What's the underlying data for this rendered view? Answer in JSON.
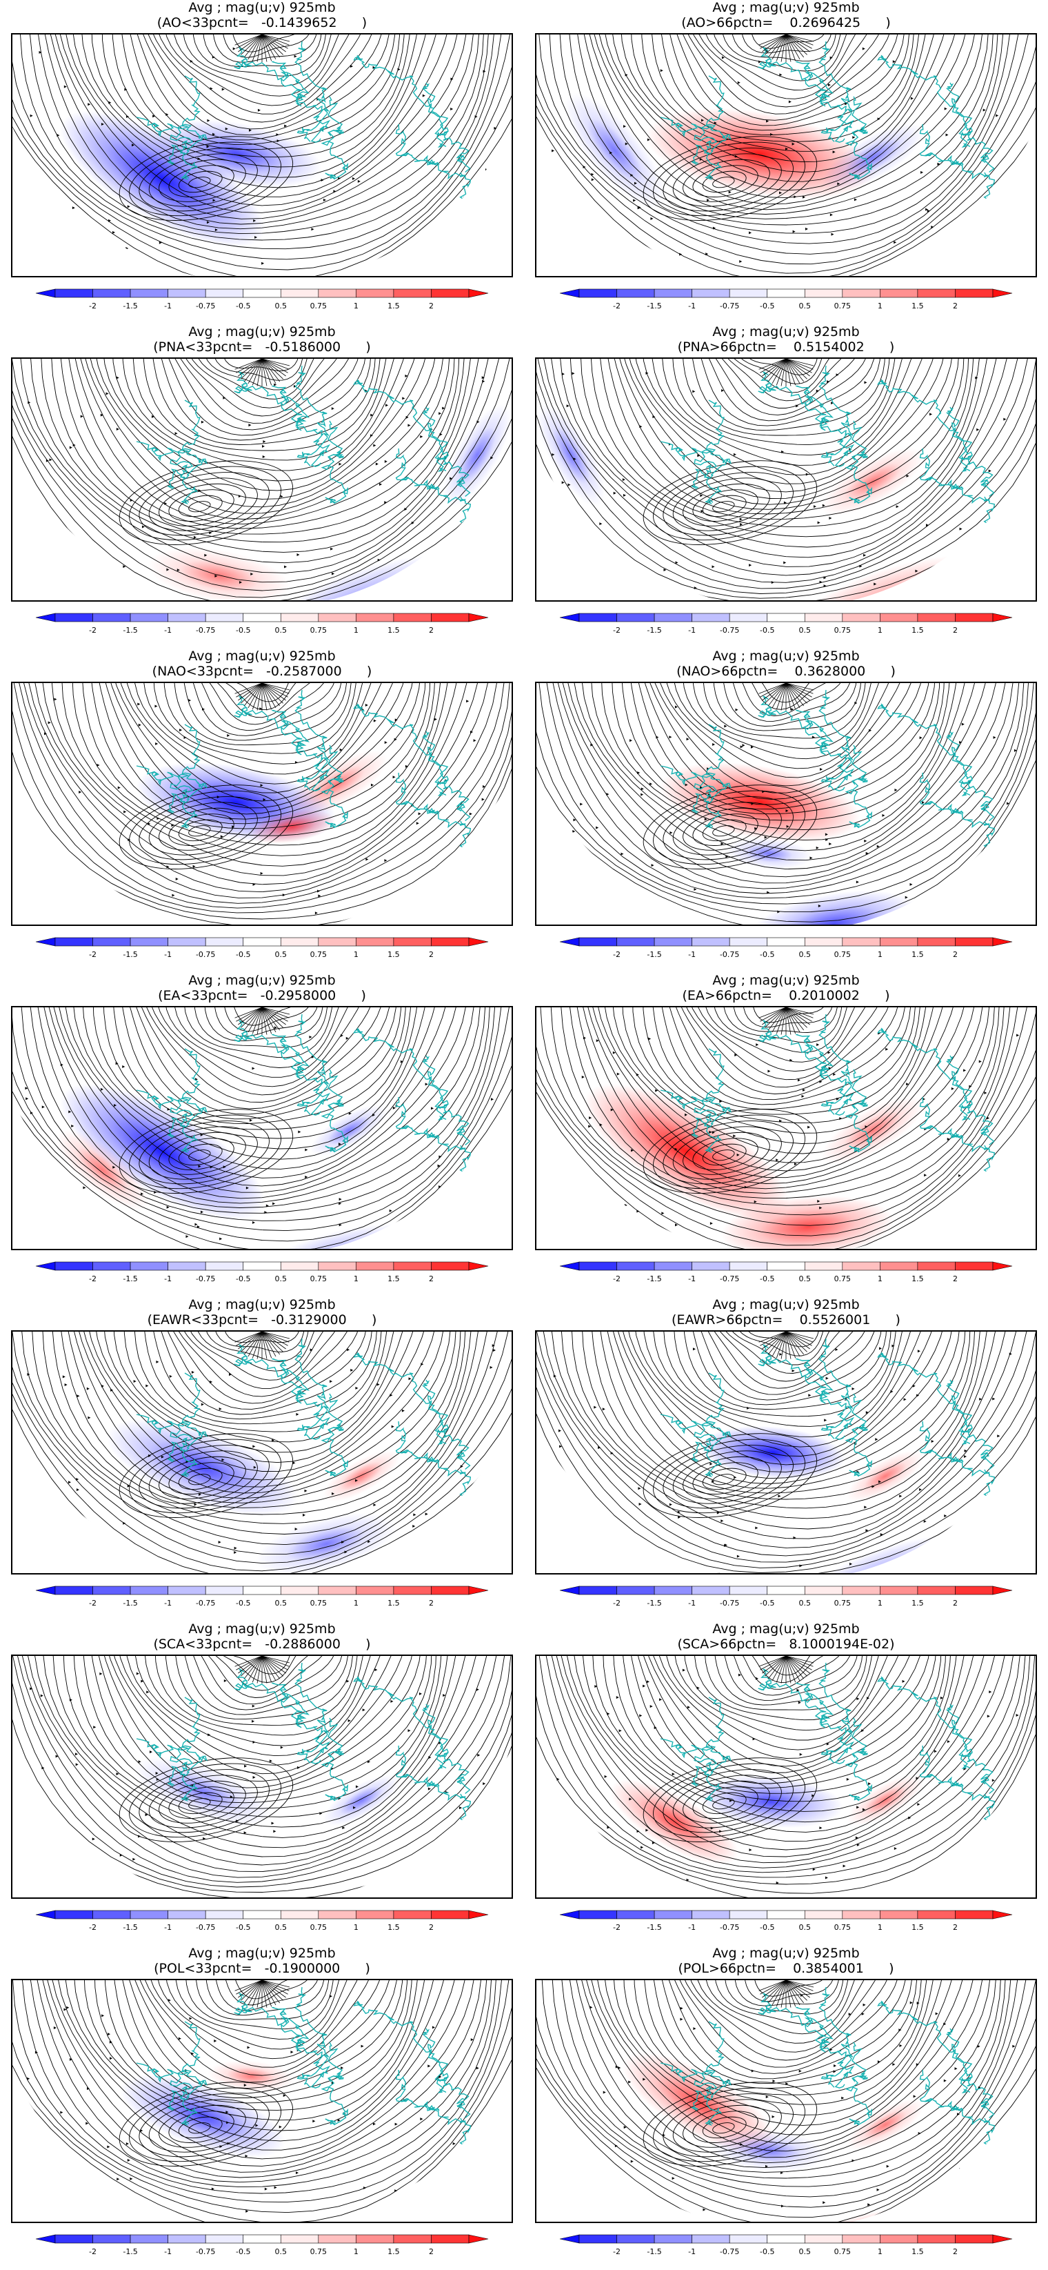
{
  "figure": {
    "colors": {
      "stream": "#000000",
      "coast": "#19b2b2",
      "neg_strong": "#1010ff",
      "neg_mid": "#6a6aff",
      "neg_light": "#c8c8ff",
      "pos_light": "#ffc8c8",
      "pos_mid": "#ff6a6a",
      "pos_strong": "#ff1010"
    },
    "colorbar": {
      "ticks": [
        "-2",
        "-1.5",
        "-1",
        "-0.75",
        "-0.5",
        "0.5",
        "0.75",
        "1",
        "1.5",
        "2"
      ],
      "colors": [
        "#1010ff",
        "#3535ff",
        "#6060ff",
        "#9090ff",
        "#c0c0ff",
        "#ececff",
        "#ffffff",
        "#ffecec",
        "#ffc0c0",
        "#ff9090",
        "#ff6060",
        "#ff3535",
        "#ff1010"
      ]
    },
    "panels": [
      {
        "line1": "Avg ; mag(u;v) 925mb",
        "line2": "(AO<33pcnt=   -0.1439652      )",
        "anomalies": [
          {
            "lon": 150,
            "lat": 50,
            "sign": -1,
            "level": 3,
            "spread": 40
          },
          {
            "lon": 170,
            "lat": 60,
            "sign": -1,
            "level": 2,
            "spread": 30
          },
          {
            "lon": 20,
            "lat": 40,
            "sign": 1,
            "level": 2,
            "spread": 20
          },
          {
            "lon": -30,
            "lat": 30,
            "sign": -1,
            "level": 1,
            "spread": 20
          }
        ]
      },
      {
        "line1": "Avg ; mag(u;v) 925mb",
        "line2": "(AO>66pctn=    0.2696425      )",
        "anomalies": [
          {
            "lon": 170,
            "lat": 60,
            "sign": 1,
            "level": 3,
            "spread": 40
          },
          {
            "lon": 20,
            "lat": 40,
            "sign": 1,
            "level": 2,
            "spread": 20
          },
          {
            "lon": 130,
            "lat": 45,
            "sign": -1,
            "level": 1,
            "spread": 25
          },
          {
            "lon": -150,
            "lat": 55,
            "sign": -1,
            "level": 1,
            "spread": 20
          }
        ]
      },
      {
        "line1": "Avg ; mag(u;v) 925mb",
        "line2": "(PNA<33pcnt=   -0.5186000      )",
        "anomalies": [
          {
            "lon": 200,
            "lat": 30,
            "sign": -1,
            "level": 2,
            "spread": 40
          },
          {
            "lon": 170,
            "lat": 40,
            "sign": 1,
            "level": 1,
            "spread": 25
          },
          {
            "lon": -120,
            "lat": 40,
            "sign": -1,
            "level": 1,
            "spread": 20
          }
        ]
      },
      {
        "line1": "Avg ; mag(u;v) 925mb",
        "line2": "(PNA>66pctn=    0.5154002      )",
        "anomalies": [
          {
            "lon": 200,
            "lat": 30,
            "sign": 1,
            "level": 2,
            "spread": 40
          },
          {
            "lon": 20,
            "lat": 45,
            "sign": -1,
            "level": 2,
            "spread": 20
          },
          {
            "lon": -150,
            "lat": 55,
            "sign": 1,
            "level": 1,
            "spread": 20
          },
          {
            "lon": 120,
            "lat": 40,
            "sign": -1,
            "level": 1,
            "spread": 20
          }
        ]
      },
      {
        "line1": "Avg ; mag(u;v) 925mb",
        "line2": "(NAO<33pcnt=   -0.2587000      )",
        "anomalies": [
          {
            "lon": 170,
            "lat": 60,
            "sign": -1,
            "level": 3,
            "spread": 35
          },
          {
            "lon": 20,
            "lat": 40,
            "sign": -1,
            "level": 2,
            "spread": 20
          },
          {
            "lon": 190,
            "lat": 55,
            "sign": 1,
            "level": 2,
            "spread": 15
          },
          {
            "lon": -150,
            "lat": 60,
            "sign": 1,
            "level": 1,
            "spread": 20
          }
        ]
      },
      {
        "line1": "Avg ; mag(u;v) 925mb",
        "line2": "(NAO>66pctn=    0.3628000      )",
        "anomalies": [
          {
            "lon": 170,
            "lat": 60,
            "sign": 1,
            "level": 3,
            "spread": 35
          },
          {
            "lon": 20,
            "lat": 40,
            "sign": 1,
            "level": 2,
            "spread": 20
          },
          {
            "lon": 190,
            "lat": 35,
            "sign": -1,
            "level": 2,
            "spread": 30
          },
          {
            "lon": 175,
            "lat": 50,
            "sign": -1,
            "level": 1,
            "spread": 15
          }
        ]
      },
      {
        "line1": "Avg ; mag(u;v) 925mb",
        "line2": "(EA<33pcnt=   -0.2958000      )",
        "anomalies": [
          {
            "lon": 150,
            "lat": 50,
            "sign": -1,
            "level": 3,
            "spread": 40
          },
          {
            "lon": 195,
            "lat": 30,
            "sign": -1,
            "level": 2,
            "spread": 35
          },
          {
            "lon": 140,
            "lat": 40,
            "sign": 1,
            "level": 1,
            "spread": 20
          },
          {
            "lon": -150,
            "lat": 55,
            "sign": -1,
            "level": 1,
            "spread": 15
          }
        ]
      },
      {
        "line1": "Avg ; mag(u;v) 925mb",
        "line2": "(EA>66pctn=    0.2010002      )",
        "anomalies": [
          {
            "lon": 150,
            "lat": 50,
            "sign": 1,
            "level": 3,
            "spread": 40
          },
          {
            "lon": 185,
            "lat": 40,
            "sign": 1,
            "level": 2,
            "spread": 30
          },
          {
            "lon": 20,
            "lat": 45,
            "sign": -1,
            "level": 2,
            "spread": 15
          },
          {
            "lon": -150,
            "lat": 55,
            "sign": 1,
            "level": 1,
            "spread": 20
          }
        ]
      },
      {
        "line1": "Avg ; mag(u;v) 925mb",
        "line2": "(EAWR<33pcnt=   -0.3129000      )",
        "anomalies": [
          {
            "lon": 160,
            "lat": 55,
            "sign": -1,
            "level": 2,
            "spread": 35
          },
          {
            "lon": 20,
            "lat": 45,
            "sign": 1,
            "level": 1,
            "spread": 20
          },
          {
            "lon": 195,
            "lat": 40,
            "sign": -1,
            "level": 1,
            "spread": 25
          },
          {
            "lon": -150,
            "lat": 50,
            "sign": 1,
            "level": 1,
            "spread": 15
          }
        ]
      },
      {
        "line1": "Avg ; mag(u;v) 925mb",
        "line2": "(EAWR>66pctn=    0.5526001      )",
        "anomalies": [
          {
            "lon": 175,
            "lat": 60,
            "sign": -1,
            "level": 3,
            "spread": 25
          },
          {
            "lon": 200,
            "lat": 30,
            "sign": -1,
            "level": 2,
            "spread": 35
          },
          {
            "lon": 20,
            "lat": 40,
            "sign": 1,
            "level": 1,
            "spread": 20
          },
          {
            "lon": -150,
            "lat": 50,
            "sign": 1,
            "level": 1,
            "spread": 15
          }
        ]
      },
      {
        "line1": "Avg ; mag(u;v) 925mb",
        "line2": "(SCA<33pcnt=   -0.2886000      )",
        "anomalies": [
          {
            "lon": 160,
            "lat": 55,
            "sign": -1,
            "level": 1,
            "spread": 25
          },
          {
            "lon": -150,
            "lat": 50,
            "sign": -1,
            "level": 1,
            "spread": 15
          },
          {
            "lon": 20,
            "lat": 45,
            "sign": 1,
            "level": 1,
            "spread": 15
          }
        ]
      },
      {
        "line1": "Avg ; mag(u;v) 925mb",
        "line2": "(SCA>66pctn=   8.1000194E-02)",
        "anomalies": [
          {
            "lon": 175,
            "lat": 55,
            "sign": -1,
            "level": 2,
            "spread": 25
          },
          {
            "lon": 150,
            "lat": 45,
            "sign": 1,
            "level": 2,
            "spread": 25
          },
          {
            "lon": -150,
            "lat": 50,
            "sign": 1,
            "level": 1,
            "spread": 15
          },
          {
            "lon": 30,
            "lat": 40,
            "sign": 1,
            "level": 1,
            "spread": 15
          }
        ]
      },
      {
        "line1": "Avg ; mag(u;v) 925mb",
        "line2": "(POL<33pcnt=   -0.1900000      )",
        "anomalies": [
          {
            "lon": 160,
            "lat": 55,
            "sign": -1,
            "level": 2,
            "spread": 30
          },
          {
            "lon": 195,
            "lat": 25,
            "sign": -1,
            "level": 2,
            "spread": 25
          },
          {
            "lon": 175,
            "lat": 65,
            "sign": 1,
            "level": 1,
            "spread": 15
          },
          {
            "lon": 30,
            "lat": 40,
            "sign": 1,
            "level": 1,
            "spread": 15
          }
        ]
      },
      {
        "line1": "Avg ; mag(u;v) 925mb",
        "line2": "(POL>66pctn=    0.3854001      )",
        "anomalies": [
          {
            "lon": 150,
            "lat": 55,
            "sign": 1,
            "level": 2,
            "spread": 30
          },
          {
            "lon": 175,
            "lat": 50,
            "sign": -1,
            "level": 1,
            "spread": 20
          },
          {
            "lon": 195,
            "lat": 30,
            "sign": 1,
            "level": 2,
            "spread": 25
          },
          {
            "lon": -150,
            "lat": 50,
            "sign": 1,
            "level": 1,
            "spread": 15
          }
        ]
      }
    ]
  }
}
